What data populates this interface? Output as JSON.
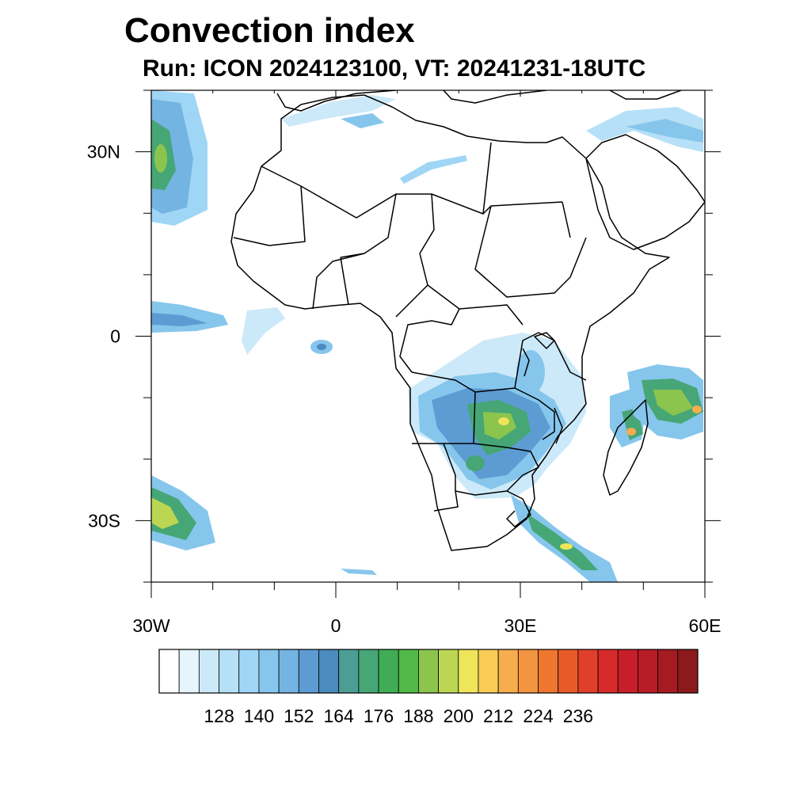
{
  "title": "Convection index",
  "subtitle": "Run: ICON 2024123100,  VT: 20241231-18UTC",
  "lat_labels": [
    {
      "text": "30N",
      "lat": 30
    },
    {
      "text": "0",
      "lat": 0
    },
    {
      "text": "30S",
      "lat": -30
    }
  ],
  "lon_labels": [
    {
      "text": "30W",
      "lon": -30
    },
    {
      "text": "0",
      "lon": 0
    },
    {
      "text": "30E",
      "lon": 30
    },
    {
      "text": "60E",
      "lon": 60
    }
  ],
  "extent": {
    "lon_min": -30,
    "lon_max": 60,
    "lat_min": -40,
    "lat_max": 40
  },
  "colorbar": {
    "colors": [
      "#ffffff",
      "#e6f4fc",
      "#cce9f9",
      "#b6e0f7",
      "#a0d6f5",
      "#86c6ec",
      "#73b4e3",
      "#5d9cd3",
      "#4c8bbd",
      "#4c9e95",
      "#46a676",
      "#40ad56",
      "#52b848",
      "#8cc54e",
      "#bcd653",
      "#eee55b",
      "#f8cc55",
      "#f7ad4e",
      "#f39440",
      "#ef762f",
      "#e85a29",
      "#e0402b",
      "#d72b2b",
      "#c71f2a",
      "#b81c26",
      "#a51b22",
      "#8c1a1d"
    ],
    "labels": [
      "128",
      "140",
      "152",
      "164",
      "176",
      "188",
      "200",
      "212",
      "224",
      "236"
    ]
  }
}
